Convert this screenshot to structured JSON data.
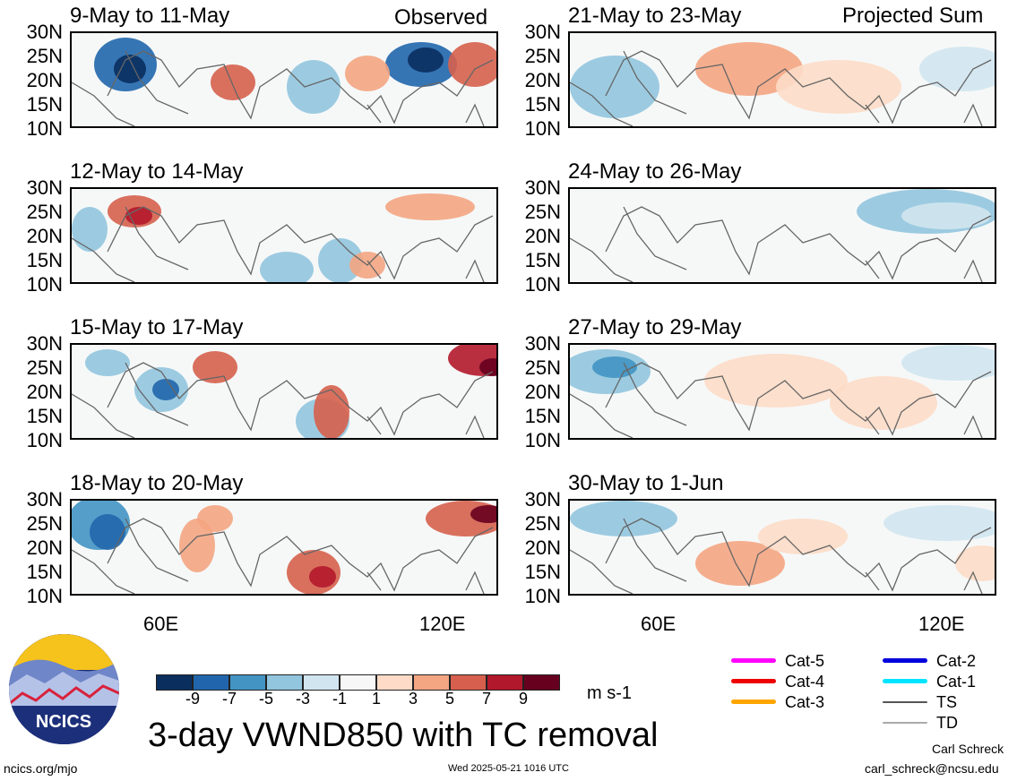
{
  "header": {
    "observed_label": "Observed",
    "projected_label": "Projected Sum"
  },
  "panels_left": [
    {
      "title": "9-May to 11-May"
    },
    {
      "title": "12-May to 14-May"
    },
    {
      "title": "15-May to 17-May"
    },
    {
      "title": "18-May to 20-May"
    }
  ],
  "panels_right": [
    {
      "title": "21-May to 23-May"
    },
    {
      "title": "24-May to 26-May"
    },
    {
      "title": "27-May to 29-May"
    },
    {
      "title": "30-May to 1-Jun"
    }
  ],
  "lat_labels": [
    "30N",
    "25N",
    "20N",
    "15N",
    "10N"
  ],
  "lon_labels": [
    "60E",
    "120E"
  ],
  "colorbar": {
    "colors": [
      "#0a2f5f",
      "#2166ac",
      "#4393c3",
      "#92c5de",
      "#d1e5f0",
      "#f7f7f7",
      "#fddbc7",
      "#f4a582",
      "#d6604d",
      "#b2182b",
      "#67001f"
    ],
    "ticks": [
      "-9",
      "-7",
      "-5",
      "-3",
      "-1",
      "1",
      "3",
      "5",
      "7",
      "9"
    ],
    "units": "m s-1"
  },
  "tc_legend": [
    {
      "label": "Cat-5",
      "color": "#ff00ff"
    },
    {
      "label": "Cat-4",
      "color": "#ee0000"
    },
    {
      "label": "Cat-3",
      "color": "#ffa500"
    },
    {
      "label": "Cat-2",
      "color": "#0000dd"
    },
    {
      "label": "Cat-1",
      "color": "#00e5ff"
    },
    {
      "label": "TS",
      "color": "#555555"
    },
    {
      "label": "TD",
      "color": "#aaaaaa"
    }
  ],
  "title": "3-day VWND850 with TC removal",
  "logo_text": "NCICS",
  "footer": {
    "website": "ncics.org/mjo",
    "timestamp": "Wed 2025-05-21 1016 UTC",
    "author": "Carl Schreck",
    "email": "carl_schreck@ncsu.edu"
  },
  "chart_data": {
    "type": "heatmap",
    "variable": "VWND850",
    "units": "m s-1",
    "lat_range": [
      10,
      30
    ],
    "lon_range": [
      40,
      130
    ],
    "lat_ticks": [
      "30N",
      "25N",
      "20N",
      "15N",
      "10N"
    ],
    "lon_ticks": [
      "60E",
      "120E"
    ],
    "contour_levels": [
      -9,
      -7,
      -5,
      -3,
      -1,
      1,
      3,
      5,
      7,
      9
    ],
    "observed_periods": [
      "9-May to 11-May",
      "12-May to 14-May",
      "15-May to 17-May",
      "18-May to 20-May"
    ],
    "projected_periods": [
      "21-May to 23-May",
      "24-May to 26-May",
      "27-May to 29-May",
      "30-May to 1-Jun"
    ]
  }
}
